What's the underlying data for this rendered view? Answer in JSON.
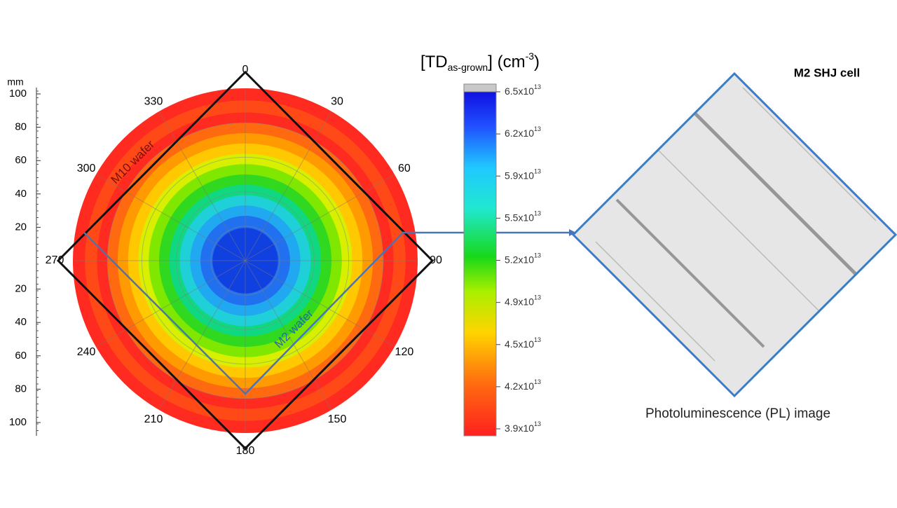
{
  "radial_axis": {
    "unit": "mm",
    "ticks_upper": [
      "100",
      "80",
      "60",
      "40",
      "20"
    ],
    "ticks_lower": [
      "20",
      "40",
      "60",
      "80",
      "100"
    ]
  },
  "angle_labels": [
    "0",
    "30",
    "60",
    "90",
    "120",
    "150",
    "180",
    "210",
    "240",
    "270",
    "300",
    "330"
  ],
  "wafer_labels": {
    "m10": "M10 wafer",
    "m2": "M2 wafer"
  },
  "colorbar": {
    "title": {
      "prefix": "[TD",
      "subscript": "as-grown",
      "middle": "] (cm",
      "superscript": "-3",
      "suffix": ")"
    },
    "ticks": [
      {
        "mantissa": "6.5x10",
        "exponent": "13"
      },
      {
        "mantissa": "6.2x10",
        "exponent": "13"
      },
      {
        "mantissa": "5.9x10",
        "exponent": "13"
      },
      {
        "mantissa": "5.5x10",
        "exponent": "13"
      },
      {
        "mantissa": "5.2x10",
        "exponent": "13"
      },
      {
        "mantissa": "4.9x10",
        "exponent": "13"
      },
      {
        "mantissa": "4.5x10",
        "exponent": "13"
      },
      {
        "mantissa": "4.2x10",
        "exponent": "13"
      },
      {
        "mantissa": "3.9x10",
        "exponent": "13"
      }
    ]
  },
  "pl_image": {
    "title": "M2 SHJ cell",
    "caption": "Photoluminescence (PL) image"
  }
}
